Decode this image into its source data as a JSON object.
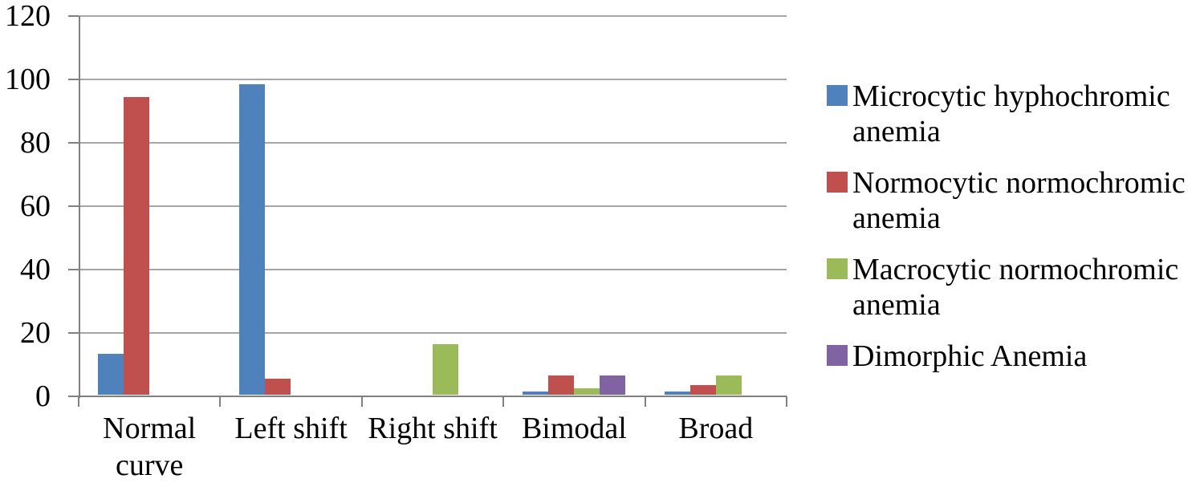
{
  "chart_data": {
    "type": "bar",
    "title": "",
    "xlabel": "",
    "ylabel": "",
    "categories": [
      "Normal curve",
      "Left shift",
      "Right shift",
      "Bimodal",
      "Broad"
    ],
    "series": [
      {
        "name": "Microcytic hyphochromic anemia",
        "color": "#4F81BD",
        "values": [
          13,
          98,
          0,
          1,
          1
        ]
      },
      {
        "name": "Normocytic normochromic anemia",
        "color": "#C0504D",
        "values": [
          94,
          5,
          0,
          6,
          3
        ]
      },
      {
        "name": "Macrocytic normochromic anemia",
        "color": "#9BBB59",
        "values": [
          0,
          0,
          16,
          2,
          6
        ]
      },
      {
        "name": "Dimorphic Anemia",
        "color": "#8064A2",
        "values": [
          0,
          0,
          0,
          6,
          0
        ]
      }
    ],
    "ylim": [
      0,
      120
    ],
    "yticks": [
      0,
      20,
      40,
      60,
      80,
      100,
      120
    ],
    "grid": true,
    "legend_position": "right",
    "colors": {
      "gridline": "#A6A6A6",
      "axis": "#808080",
      "text": "#000000",
      "background": "#FFFFFF"
    }
  }
}
